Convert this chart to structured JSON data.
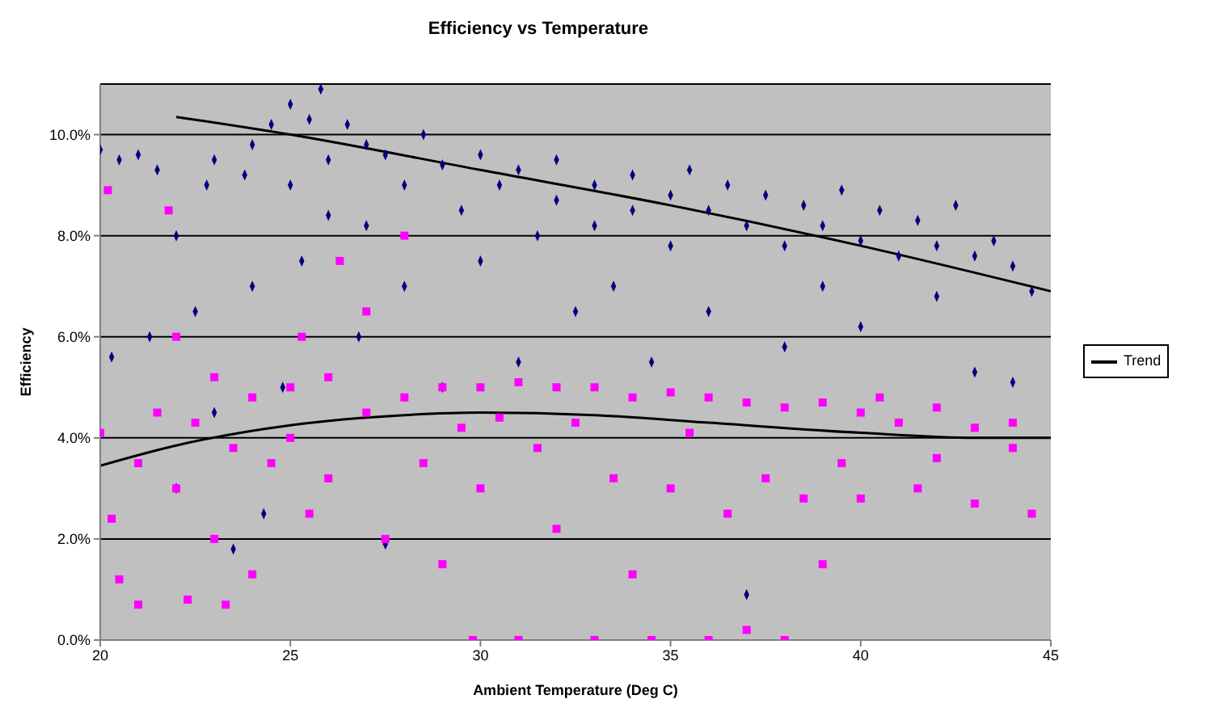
{
  "chart_data": {
    "type": "scatter",
    "title": "Efficiency vs Temperature",
    "xlabel": "Ambient Temperature (Deg C)",
    "ylabel": "Efficiency",
    "xlim": [
      20,
      45
    ],
    "xticks": [
      20,
      25,
      30,
      35,
      40,
      45
    ],
    "ylim": [
      0,
      11
    ],
    "yticks": [
      {
        "value": 0,
        "label": "0.0%"
      },
      {
        "value": 2,
        "label": "2.0%"
      },
      {
        "value": 4,
        "label": "4.0%"
      },
      {
        "value": 6,
        "label": "6.0%"
      },
      {
        "value": 8,
        "label": "8.0%"
      },
      {
        "value": 10,
        "label": "10.0%"
      }
    ],
    "grid": "y",
    "legend": "right",
    "series": [
      {
        "type": "scatter",
        "color": "#000080",
        "marker": "diamond",
        "x": [
          20,
          20.3,
          20.5,
          21,
          21.3,
          21.5,
          22,
          22,
          22.5,
          22.8,
          23,
          23,
          23.5,
          23.8,
          24,
          24,
          24.3,
          24.5,
          24.8,
          25,
          25,
          25.3,
          25.5,
          25.8,
          26,
          26,
          26.5,
          26.8,
          27,
          27,
          27.5,
          27.5,
          28,
          28,
          28.5,
          29,
          29,
          29.5,
          30,
          30,
          30.5,
          31,
          31,
          31.5,
          32,
          32,
          32.5,
          33,
          33,
          33.5,
          34,
          34,
          34.5,
          35,
          35,
          35.5,
          36,
          36,
          36.5,
          37,
          37,
          37.5,
          38,
          38,
          38.5,
          39,
          39,
          39.5,
          40,
          40,
          40.5,
          41,
          41.5,
          42,
          42,
          42.5,
          43,
          43,
          43.5,
          44,
          44,
          44.5
        ],
        "values": [
          9.7,
          5.6,
          9.5,
          9.6,
          6.0,
          9.3,
          8.0,
          3.0,
          6.5,
          9.0,
          9.5,
          4.5,
          1.8,
          9.2,
          9.8,
          7.0,
          2.5,
          10.2,
          5.0,
          10.6,
          9.0,
          7.5,
          10.3,
          10.9,
          9.5,
          8.4,
          10.2,
          6.0,
          9.8,
          8.2,
          1.9,
          9.6,
          9.0,
          7.0,
          10.0,
          9.4,
          5.0,
          8.5,
          9.6,
          7.5,
          9.0,
          9.3,
          5.5,
          8.0,
          9.5,
          8.7,
          6.5,
          9.0,
          8.2,
          7.0,
          9.2,
          8.5,
          5.5,
          8.8,
          7.8,
          9.3,
          8.5,
          6.5,
          9.0,
          8.2,
          0.9,
          8.8,
          7.8,
          5.8,
          8.6,
          8.2,
          7.0,
          8.9,
          7.9,
          6.2,
          8.5,
          7.6,
          8.3,
          7.8,
          6.8,
          8.6,
          7.6,
          5.3,
          7.9,
          7.4,
          5.1,
          6.9
        ]
      },
      {
        "type": "scatter",
        "color": "#ff00ff",
        "marker": "square",
        "x": [
          20,
          20.2,
          20.3,
          20.5,
          21,
          21,
          21.5,
          21.8,
          22,
          22,
          22.3,
          22.5,
          23,
          23,
          23.3,
          23.5,
          24,
          24,
          24.5,
          25,
          25,
          25.3,
          25.5,
          26,
          26,
          26.3,
          27,
          27,
          27.5,
          28,
          28,
          28.5,
          29,
          29,
          29.5,
          29.8,
          30,
          30,
          30.5,
          31,
          31,
          31.5,
          32,
          32,
          32.5,
          33,
          33,
          33.5,
          34,
          34,
          34.5,
          35,
          35,
          35.5,
          36,
          36,
          36.5,
          37,
          37,
          37.5,
          38,
          38,
          38.5,
          39,
          39,
          39.5,
          40,
          40,
          40.5,
          41,
          41.5,
          42,
          42,
          43,
          43,
          44,
          44.5,
          44
        ],
        "values": [
          4.1,
          8.9,
          2.4,
          1.2,
          3.5,
          0.7,
          4.5,
          8.5,
          3.0,
          6.0,
          0.8,
          4.3,
          5.2,
          2.0,
          0.7,
          3.8,
          4.8,
          1.3,
          3.5,
          5.0,
          4.0,
          6.0,
          2.5,
          5.2,
          3.2,
          7.5,
          4.5,
          6.5,
          2.0,
          8.0,
          4.8,
          3.5,
          5.0,
          1.5,
          4.2,
          0.0,
          5.0,
          3.0,
          4.4,
          5.1,
          0.0,
          3.8,
          5.0,
          2.2,
          4.3,
          5.0,
          0.0,
          3.2,
          4.8,
          1.3,
          0.0,
          4.9,
          3.0,
          4.1,
          4.8,
          0.0,
          2.5,
          4.7,
          0.2,
          3.2,
          4.6,
          0.0,
          2.8,
          4.7,
          1.5,
          3.5,
          4.5,
          2.8,
          4.8,
          4.3,
          3.0,
          4.6,
          3.6,
          4.2,
          2.7,
          4.3,
          2.5,
          3.8
        ]
      },
      {
        "type": "line",
        "name": "Trend",
        "color": "#000000",
        "marker": "none",
        "x": [
          22,
          25,
          30,
          35,
          40,
          45
        ],
        "values": [
          10.35,
          10.0,
          9.3,
          8.6,
          7.8,
          6.9
        ]
      },
      {
        "type": "line",
        "color": "#000000",
        "marker": "none",
        "x": [
          20,
          22,
          25,
          28,
          30,
          33,
          36,
          40,
          43,
          45
        ],
        "values": [
          3.45,
          3.85,
          4.25,
          4.45,
          4.5,
          4.45,
          4.3,
          4.1,
          4.0,
          4.0
        ]
      }
    ]
  }
}
